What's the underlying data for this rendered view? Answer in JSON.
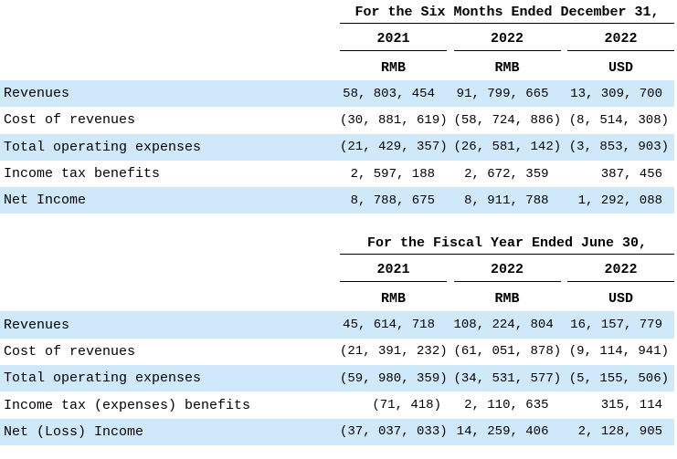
{
  "colors": {
    "row_highlight": "#cfe9fa",
    "rule": "#000000",
    "text": "#000000"
  },
  "tables": [
    {
      "title": "For the Six Months Ended December 31,",
      "columns": [
        {
          "year": "2021",
          "currency": "RMB"
        },
        {
          "year": "2022",
          "currency": "RMB"
        },
        {
          "year": "2022",
          "currency": "USD"
        }
      ],
      "rows": [
        {
          "label": "Revenues",
          "values": [
            "58, 803, 454",
            "91, 799, 665",
            "13, 309, 700"
          ]
        },
        {
          "label": "Cost of revenues",
          "values": [
            "(30, 881, 619)",
            "(58, 724, 886)",
            "(8, 514, 308)"
          ]
        },
        {
          "label": "Total operating expenses",
          "values": [
            "(21, 429, 357)",
            "(26, 581, 142)",
            "(3, 853, 903)"
          ]
        },
        {
          "label": "Income tax benefits",
          "values": [
            "2, 597, 188",
            "2, 672, 359",
            "387, 456"
          ]
        },
        {
          "label": "Net Income",
          "values": [
            "8, 788, 675",
            "8, 911, 788",
            "1, 292, 088"
          ]
        }
      ]
    },
    {
      "title": "For the Fiscal Year Ended June 30,",
      "columns": [
        {
          "year": "2021",
          "currency": "RMB"
        },
        {
          "year": "2022",
          "currency": "RMB"
        },
        {
          "year": "2022",
          "currency": "USD"
        }
      ],
      "rows": [
        {
          "label": "Revenues",
          "values": [
            "45, 614, 718",
            "108, 224, 804",
            "16, 157, 779"
          ]
        },
        {
          "label": "Cost of revenues",
          "values": [
            "(21, 391, 232)",
            "(61, 051, 878)",
            "(9, 114, 941)"
          ]
        },
        {
          "label": "Total operating expenses",
          "values": [
            "(59, 980, 359)",
            "(34, 531, 577)",
            "(5, 155, 506)"
          ]
        },
        {
          "label": "Income tax (expenses) benefits",
          "values": [
            "(71, 418)",
            "2, 110, 635",
            "315, 114"
          ]
        },
        {
          "label": "Net (Loss) Income",
          "values": [
            "(37, 037, 033)",
            "14, 259, 406",
            "2, 128, 905"
          ]
        }
      ]
    }
  ]
}
